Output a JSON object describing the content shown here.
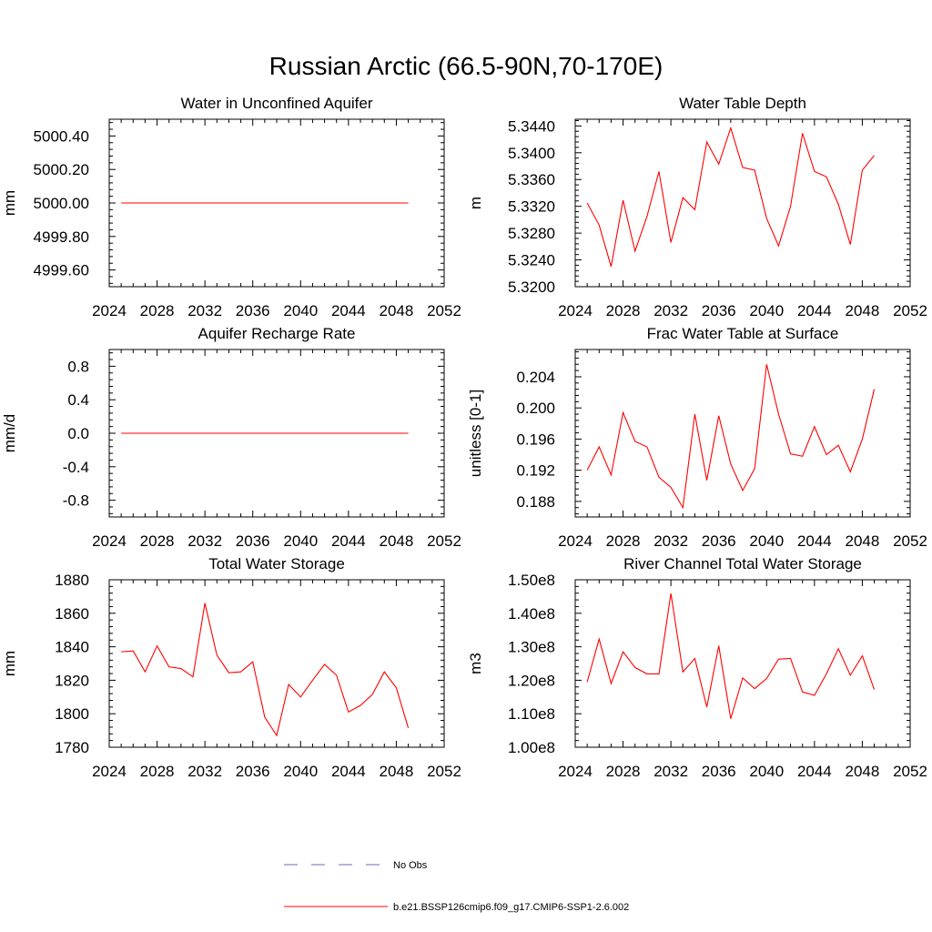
{
  "figure": {
    "title": "Russian Arctic (66.5-90N,70-170E)"
  },
  "legend": {
    "entries": [
      {
        "label": "No Obs",
        "color": "#6a6ab5",
        "style": "dashed"
      },
      {
        "label": "b.e21.BSSP126cmip6.f09_g17.CMIP6-SSP1-2.6.002",
        "color": "#ff0000",
        "style": "solid"
      }
    ]
  },
  "chart_data": [
    {
      "type": "line",
      "title": "Water in Unconfined Aquifer",
      "ylabel": "mm",
      "xlim": [
        2024,
        2052
      ],
      "ylim": [
        4999.5,
        5000.5
      ],
      "xticks": [
        2024,
        2028,
        2032,
        2036,
        2040,
        2044,
        2048,
        2052
      ],
      "xtick_labels": [
        "2024",
        "2028",
        "2032",
        "2036",
        "2040",
        "2044",
        "2048",
        "2052"
      ],
      "yticks": [
        4999.6,
        4999.8,
        5000.0,
        5000.2,
        5000.4
      ],
      "ytick_labels": [
        "4999.60",
        "4999.80",
        "5000.00",
        "5000.20",
        "5000.40"
      ],
      "x": [
        2025,
        2026,
        2027,
        2028,
        2029,
        2030,
        2031,
        2032,
        2033,
        2034,
        2035,
        2036,
        2037,
        2038,
        2039,
        2040,
        2041,
        2042,
        2043,
        2044,
        2045,
        2046,
        2047,
        2048,
        2049
      ],
      "series": [
        {
          "color": "#ff0000",
          "values": [
            5000,
            5000,
            5000,
            5000,
            5000,
            5000,
            5000,
            5000,
            5000,
            5000,
            5000,
            5000,
            5000,
            5000,
            5000,
            5000,
            5000,
            5000,
            5000,
            5000,
            5000,
            5000,
            5000,
            5000,
            5000
          ]
        }
      ]
    },
    {
      "type": "line",
      "title": "Water Table Depth",
      "ylabel": "m",
      "xlim": [
        2024,
        2052
      ],
      "ylim": [
        5.32,
        5.345
      ],
      "xticks": [
        2024,
        2028,
        2032,
        2036,
        2040,
        2044,
        2048,
        2052
      ],
      "xtick_labels": [
        "2024",
        "2028",
        "2032",
        "2036",
        "2040",
        "2044",
        "2048",
        "2052"
      ],
      "yticks": [
        5.32,
        5.324,
        5.328,
        5.332,
        5.336,
        5.34,
        5.344
      ],
      "ytick_labels": [
        "5.3200",
        "5.3240",
        "5.3280",
        "5.3320",
        "5.3360",
        "5.3400",
        "5.3440"
      ],
      "x": [
        2025,
        2026,
        2027,
        2028,
        2029,
        2030,
        2031,
        2032,
        2033,
        2034,
        2035,
        2036,
        2037,
        2038,
        2039,
        2040,
        2041,
        2042,
        2043,
        2044,
        2045,
        2046,
        2047,
        2048,
        2049
      ],
      "series": [
        {
          "color": "#ff0000",
          "values": [
            5.3325,
            5.3292,
            5.323,
            5.3329,
            5.3253,
            5.3305,
            5.3372,
            5.3266,
            5.3333,
            5.3315,
            5.3416,
            5.3383,
            5.3437,
            5.3378,
            5.3374,
            5.3302,
            5.3261,
            5.332,
            5.3429,
            5.3372,
            5.3364,
            5.3323,
            5.3263,
            5.3374,
            5.3396
          ]
        }
      ]
    },
    {
      "type": "line",
      "title": "Aquifer Recharge Rate",
      "ylabel": "mm/d",
      "xlim": [
        2024,
        2052
      ],
      "ylim": [
        -1.0,
        1.0
      ],
      "xticks": [
        2024,
        2028,
        2032,
        2036,
        2040,
        2044,
        2048,
        2052
      ],
      "xtick_labels": [
        "2024",
        "2028",
        "2032",
        "2036",
        "2040",
        "2044",
        "2048",
        "2052"
      ],
      "yticks": [
        -0.8,
        -0.4,
        0.0,
        0.4,
        0.8
      ],
      "ytick_labels": [
        "-0.8",
        "-0.4",
        "0.0",
        "0.4",
        "0.8"
      ],
      "x": [
        2025,
        2026,
        2027,
        2028,
        2029,
        2030,
        2031,
        2032,
        2033,
        2034,
        2035,
        2036,
        2037,
        2038,
        2039,
        2040,
        2041,
        2042,
        2043,
        2044,
        2045,
        2046,
        2047,
        2048,
        2049
      ],
      "series": [
        {
          "color": "#ff0000",
          "values": [
            0,
            0,
            0,
            0,
            0,
            0,
            0,
            0,
            0,
            0,
            0,
            0,
            0,
            0,
            0,
            0,
            0,
            0,
            0,
            0,
            0,
            0,
            0,
            0,
            0
          ]
        }
      ]
    },
    {
      "type": "line",
      "title": "Frac Water Table at Surface",
      "ylabel": "unitless [0-1]",
      "xlim": [
        2024,
        2052
      ],
      "ylim": [
        0.186,
        0.2075
      ],
      "xticks": [
        2024,
        2028,
        2032,
        2036,
        2040,
        2044,
        2048,
        2052
      ],
      "xtick_labels": [
        "2024",
        "2028",
        "2032",
        "2036",
        "2040",
        "2044",
        "2048",
        "2052"
      ],
      "yticks": [
        0.188,
        0.192,
        0.196,
        0.2,
        0.204
      ],
      "ytick_labels": [
        "0.188",
        "0.192",
        "0.196",
        "0.200",
        "0.204"
      ],
      "x": [
        2025,
        2026,
        2027,
        2028,
        2029,
        2030,
        2031,
        2032,
        2033,
        2034,
        2035,
        2036,
        2037,
        2038,
        2039,
        2040,
        2041,
        2042,
        2043,
        2044,
        2045,
        2046,
        2047,
        2048,
        2049
      ],
      "series": [
        {
          "color": "#ff0000",
          "values": [
            0.192,
            0.195,
            0.1914,
            0.1994,
            0.1957,
            0.195,
            0.1911,
            0.1898,
            0.1872,
            0.1992,
            0.1907,
            0.199,
            0.1928,
            0.1894,
            0.1922,
            0.2056,
            0.1992,
            0.1941,
            0.1938,
            0.1976,
            0.194,
            0.1952,
            0.1918,
            0.196,
            0.2024
          ]
        }
      ]
    },
    {
      "type": "line",
      "title": "Total Water Storage",
      "ylabel": "mm",
      "xlim": [
        2024,
        2052
      ],
      "ylim": [
        1780,
        1880
      ],
      "xticks": [
        2024,
        2028,
        2032,
        2036,
        2040,
        2044,
        2048,
        2052
      ],
      "xtick_labels": [
        "2024",
        "2028",
        "2032",
        "2036",
        "2040",
        "2044",
        "2048",
        "2052"
      ],
      "yticks": [
        1780,
        1800,
        1820,
        1840,
        1860,
        1880
      ],
      "ytick_labels": [
        "1780",
        "1800",
        "1820",
        "1840",
        "1860",
        "1880"
      ],
      "x": [
        2025,
        2026,
        2027,
        2028,
        2029,
        2030,
        2031,
        2032,
        2033,
        2034,
        2035,
        2036,
        2037,
        2038,
        2039,
        2040,
        2041,
        2042,
        2043,
        2044,
        2045,
        2046,
        2047,
        2048,
        2049
      ],
      "series": [
        {
          "color": "#ff0000",
          "values": [
            1837,
            1837.5,
            1825,
            1840.5,
            1828,
            1827,
            1822,
            1866,
            1835,
            1824.5,
            1825,
            1831,
            1798,
            1787,
            1817.5,
            1810,
            1820,
            1829.5,
            1823,
            1801,
            1805,
            1811.5,
            1825,
            1815.5,
            1791.5
          ]
        }
      ]
    },
    {
      "type": "line",
      "title": "River Channel Total Water Storage",
      "ylabel": "m3",
      "xlim": [
        2024,
        2052
      ],
      "ylim": [
        100000000,
        150000000
      ],
      "xticks": [
        2024,
        2028,
        2032,
        2036,
        2040,
        2044,
        2048,
        2052
      ],
      "xtick_labels": [
        "2024",
        "2028",
        "2032",
        "2036",
        "2040",
        "2044",
        "2048",
        "2052"
      ],
      "yticks": [
        100000000,
        110000000,
        120000000,
        130000000,
        140000000,
        150000000
      ],
      "ytick_labels": [
        "1.00e8",
        "1.10e8",
        "1.20e8",
        "1.30e8",
        "1.40e8",
        "1.50e8"
      ],
      "x": [
        2025,
        2026,
        2027,
        2028,
        2029,
        2030,
        2031,
        2032,
        2033,
        2034,
        2035,
        2036,
        2037,
        2038,
        2039,
        2040,
        2041,
        2042,
        2043,
        2044,
        2045,
        2046,
        2047,
        2048,
        2049
      ],
      "series": [
        {
          "color": "#ff0000",
          "values": [
            119500000,
            132300000,
            119000000,
            128500000,
            123800000,
            121900000,
            121900000,
            145900000,
            122500000,
            126500000,
            112000000,
            130300000,
            108500000,
            120700000,
            117500000,
            120500000,
            126300000,
            126500000,
            116500000,
            115500000,
            121900000,
            129400000,
            121500000,
            127300000,
            117200000
          ]
        }
      ]
    }
  ]
}
